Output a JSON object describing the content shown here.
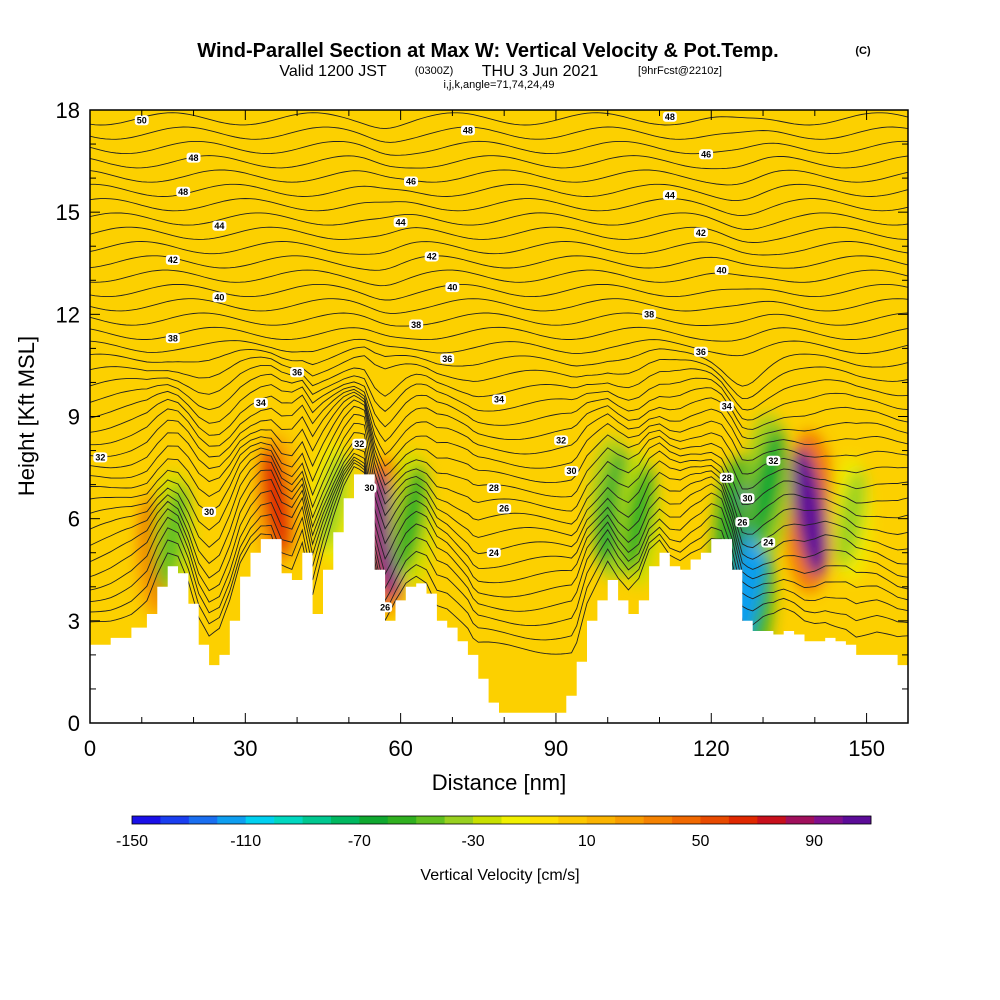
{
  "chart_data": {
    "type": "heatmap",
    "title_main": "Wind-Parallel Section at Max W: Vertical Velocity & Pot.Temp.",
    "title_mark": "(C)",
    "subtitle_a": "Valid 1200 JST",
    "subtitle_b": "(0300Z)",
    "subtitle_c": "THU 3 Jun 2021",
    "subtitle_d": "[9hrFcst@2210z]",
    "subtitle_params": "i,j,k,angle=71,74,24,49",
    "xlabel": "Distance [nm]",
    "ylabel": "Height [Kft MSL]",
    "xlim": [
      0,
      158
    ],
    "ylim": [
      0,
      18
    ],
    "x_ticks": [
      "0",
      "30",
      "60",
      "90",
      "120",
      "150"
    ],
    "y_ticks": [
      "0",
      "3",
      "6",
      "9",
      "12",
      "15",
      "18"
    ],
    "colorbar": {
      "label": "Vertical Velocity [cm/s]",
      "range": [
        -150,
        110
      ],
      "step": 10,
      "tick_labels": [
        "-150",
        "-110",
        "-70",
        "-30",
        "10",
        "50",
        "90"
      ],
      "colors": [
        "#1a10e8",
        "#1a3ef0",
        "#1a6ef0",
        "#0e9ef0",
        "#00d0f0",
        "#00d8c0",
        "#00c890",
        "#00b860",
        "#10a830",
        "#30b020",
        "#60c020",
        "#98d020",
        "#c8e000",
        "#f0f000",
        "#fde000",
        "#fcc800",
        "#fbb400",
        "#f89c00",
        "#f58200",
        "#f06800",
        "#e84a00",
        "#e02800",
        "#c8101c",
        "#a0105c",
        "#80108c",
        "#5c0c98"
      ]
    },
    "terrain_height": [
      {
        "x": 0,
        "y": 2.3
      },
      {
        "x": 4,
        "y": 2.5
      },
      {
        "x": 8,
        "y": 2.8
      },
      {
        "x": 11,
        "y": 3.2
      },
      {
        "x": 13,
        "y": 4.0
      },
      {
        "x": 15,
        "y": 4.6
      },
      {
        "x": 17,
        "y": 4.4
      },
      {
        "x": 19,
        "y": 3.5
      },
      {
        "x": 21,
        "y": 2.3
      },
      {
        "x": 23,
        "y": 1.7
      },
      {
        "x": 25,
        "y": 2.0
      },
      {
        "x": 27,
        "y": 3.0
      },
      {
        "x": 29,
        "y": 4.3
      },
      {
        "x": 31,
        "y": 5.0
      },
      {
        "x": 33,
        "y": 5.4
      },
      {
        "x": 35,
        "y": 5.4
      },
      {
        "x": 37,
        "y": 4.4
      },
      {
        "x": 39,
        "y": 4.2
      },
      {
        "x": 41,
        "y": 5.0
      },
      {
        "x": 43,
        "y": 3.2
      },
      {
        "x": 45,
        "y": 4.5
      },
      {
        "x": 47,
        "y": 5.6
      },
      {
        "x": 49,
        "y": 6.6
      },
      {
        "x": 51,
        "y": 7.3
      },
      {
        "x": 53,
        "y": 7.3
      },
      {
        "x": 55,
        "y": 4.5
      },
      {
        "x": 57,
        "y": 3.0
      },
      {
        "x": 59,
        "y": 3.6
      },
      {
        "x": 61,
        "y": 4.0
      },
      {
        "x": 63,
        "y": 4.1
      },
      {
        "x": 65,
        "y": 3.8
      },
      {
        "x": 67,
        "y": 3.0
      },
      {
        "x": 69,
        "y": 2.8
      },
      {
        "x": 71,
        "y": 2.4
      },
      {
        "x": 73,
        "y": 2.0
      },
      {
        "x": 75,
        "y": 1.3
      },
      {
        "x": 77,
        "y": 0.6
      },
      {
        "x": 79,
        "y": 0.3
      },
      {
        "x": 84,
        "y": 0.3
      },
      {
        "x": 89,
        "y": 0.3
      },
      {
        "x": 92,
        "y": 0.8
      },
      {
        "x": 94,
        "y": 1.8
      },
      {
        "x": 96,
        "y": 3.0
      },
      {
        "x": 98,
        "y": 3.6
      },
      {
        "x": 100,
        "y": 4.2
      },
      {
        "x": 102,
        "y": 3.6
      },
      {
        "x": 104,
        "y": 3.2
      },
      {
        "x": 106,
        "y": 3.6
      },
      {
        "x": 108,
        "y": 4.6
      },
      {
        "x": 110,
        "y": 5.0
      },
      {
        "x": 112,
        "y": 4.6
      },
      {
        "x": 114,
        "y": 4.5
      },
      {
        "x": 116,
        "y": 4.8
      },
      {
        "x": 118,
        "y": 5.0
      },
      {
        "x": 120,
        "y": 5.4
      },
      {
        "x": 122,
        "y": 5.4
      },
      {
        "x": 124,
        "y": 4.5
      },
      {
        "x": 126,
        "y": 3.0
      },
      {
        "x": 128,
        "y": 2.7
      },
      {
        "x": 130,
        "y": 2.7
      },
      {
        "x": 132,
        "y": 2.6
      },
      {
        "x": 134,
        "y": 2.7
      },
      {
        "x": 136,
        "y": 2.6
      },
      {
        "x": 138,
        "y": 2.4
      },
      {
        "x": 140,
        "y": 2.4
      },
      {
        "x": 142,
        "y": 2.5
      },
      {
        "x": 144,
        "y": 2.4
      },
      {
        "x": 146,
        "y": 2.3
      },
      {
        "x": 148,
        "y": 2.0
      },
      {
        "x": 152,
        "y": 2.0
      },
      {
        "x": 156,
        "y": 1.7
      },
      {
        "x": 158,
        "y": 1.7
      }
    ],
    "velocity_features": [
      {
        "x": 57,
        "y": 5.5,
        "value": 90
      },
      {
        "x": 139,
        "y": 6.2,
        "value": 100
      },
      {
        "x": 36,
        "y": 6.5,
        "value": 60
      },
      {
        "x": 13,
        "y": 5.0,
        "value": 50
      },
      {
        "x": 126,
        "y": 5.0,
        "value": -150
      },
      {
        "x": 127,
        "y": 4.0,
        "value": -120
      },
      {
        "x": 101,
        "y": 6.3,
        "value": -70
      },
      {
        "x": 106,
        "y": 6.0,
        "value": -60
      },
      {
        "x": 131,
        "y": 7.0,
        "value": -70
      },
      {
        "x": 62,
        "y": 6.0,
        "value": -60
      },
      {
        "x": 16,
        "y": 5.5,
        "value": -50
      },
      {
        "x": 47,
        "y": 6.5,
        "value": -40
      },
      {
        "x": 147,
        "y": 6.0,
        "value": -40
      }
    ],
    "theta_contours": {
      "labels": [
        {
          "x": 10,
          "y": 17.7,
          "text": "50"
        },
        {
          "x": 20,
          "y": 16.6,
          "text": "48"
        },
        {
          "x": 18,
          "y": 15.6,
          "text": "48"
        },
        {
          "x": 25,
          "y": 14.6,
          "text": "44"
        },
        {
          "x": 16,
          "y": 13.6,
          "text": "42"
        },
        {
          "x": 25,
          "y": 12.5,
          "text": "40"
        },
        {
          "x": 16,
          "y": 11.3,
          "text": "38"
        },
        {
          "x": 40,
          "y": 10.3,
          "text": "36"
        },
        {
          "x": 33,
          "y": 9.4,
          "text": "34"
        },
        {
          "x": 2,
          "y": 7.8,
          "text": "32"
        },
        {
          "x": 23,
          "y": 6.2,
          "text": "30"
        },
        {
          "x": 73,
          "y": 17.4,
          "text": "48"
        },
        {
          "x": 62,
          "y": 15.9,
          "text": "46"
        },
        {
          "x": 60,
          "y": 14.7,
          "text": "44"
        },
        {
          "x": 66,
          "y": 13.7,
          "text": "42"
        },
        {
          "x": 70,
          "y": 12.8,
          "text": "40"
        },
        {
          "x": 63,
          "y": 11.7,
          "text": "38"
        },
        {
          "x": 69,
          "y": 10.7,
          "text": "36"
        },
        {
          "x": 79,
          "y": 9.5,
          "text": "34"
        },
        {
          "x": 52,
          "y": 8.2,
          "text": "32"
        },
        {
          "x": 54,
          "y": 6.9,
          "text": "30"
        },
        {
          "x": 57,
          "y": 3.4,
          "text": "26"
        },
        {
          "x": 91,
          "y": 8.3,
          "text": "32"
        },
        {
          "x": 93,
          "y": 7.4,
          "text": "30"
        },
        {
          "x": 78,
          "y": 6.9,
          "text": "28"
        },
        {
          "x": 80,
          "y": 6.3,
          "text": "26"
        },
        {
          "x": 78,
          "y": 5.0,
          "text": "24"
        },
        {
          "x": 112,
          "y": 17.8,
          "text": "48"
        },
        {
          "x": 119,
          "y": 16.7,
          "text": "46"
        },
        {
          "x": 112,
          "y": 15.5,
          "text": "44"
        },
        {
          "x": 118,
          "y": 14.4,
          "text": "42"
        },
        {
          "x": 122,
          "y": 13.3,
          "text": "40"
        },
        {
          "x": 108,
          "y": 12.0,
          "text": "38"
        },
        {
          "x": 118,
          "y": 10.9,
          "text": "36"
        },
        {
          "x": 123,
          "y": 9.3,
          "text": "34"
        },
        {
          "x": 132,
          "y": 7.7,
          "text": "32"
        },
        {
          "x": 123,
          "y": 7.2,
          "text": "28"
        },
        {
          "x": 127,
          "y": 6.6,
          "text": "30"
        },
        {
          "x": 126,
          "y": 5.9,
          "text": "26"
        },
        {
          "x": 131,
          "y": 5.3,
          "text": "24"
        }
      ]
    }
  }
}
